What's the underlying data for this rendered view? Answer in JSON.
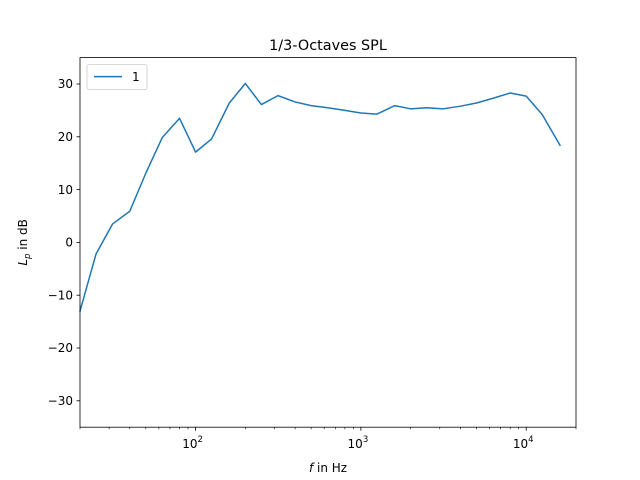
{
  "chart_data": {
    "type": "line",
    "title": "1/3-Octaves SPL",
    "xlabel_var": "f",
    "xlabel_rest": " in Hz",
    "ylabel_var": "L",
    "ylabel_sub": "p",
    "ylabel_rest": " in dB",
    "xscale": "log",
    "xlim": [
      20,
      20000
    ],
    "ylim": [
      -35,
      35
    ],
    "grid": false,
    "legend_position": "top-left",
    "x_major_ticks": [
      {
        "value": 100,
        "base": "10",
        "exp": "2"
      },
      {
        "value": 1000,
        "base": "10",
        "exp": "3"
      },
      {
        "value": 10000,
        "base": "10",
        "exp": "4"
      }
    ],
    "y_ticks": [
      {
        "value": -30,
        "label": "−30"
      },
      {
        "value": -20,
        "label": "−20"
      },
      {
        "value": -10,
        "label": "−10"
      },
      {
        "value": 0,
        "label": "0"
      },
      {
        "value": 10,
        "label": "10"
      },
      {
        "value": 20,
        "label": "20"
      },
      {
        "value": 30,
        "label": "30"
      }
    ],
    "series": [
      {
        "name": "1",
        "color": "#1f77b4",
        "x": [
          20,
          25,
          31.5,
          40,
          50,
          63,
          80,
          100,
          125,
          160,
          200,
          250,
          315,
          400,
          500,
          630,
          800,
          1000,
          1250,
          1600,
          2000,
          2500,
          3150,
          4000,
          5000,
          6300,
          8000,
          10000,
          12500,
          16000
        ],
        "y": [
          -13,
          -2.2,
          3.5,
          5.9,
          13.1,
          19.9,
          23.5,
          17.1,
          19.6,
          26.4,
          30.1,
          26.1,
          27.8,
          26.6,
          25.9,
          25.5,
          25.0,
          24.5,
          24.3,
          25.9,
          25.3,
          25.5,
          25.3,
          25.8,
          26.4,
          27.3,
          28.3,
          27.7,
          24.2,
          18.4
        ]
      }
    ]
  }
}
